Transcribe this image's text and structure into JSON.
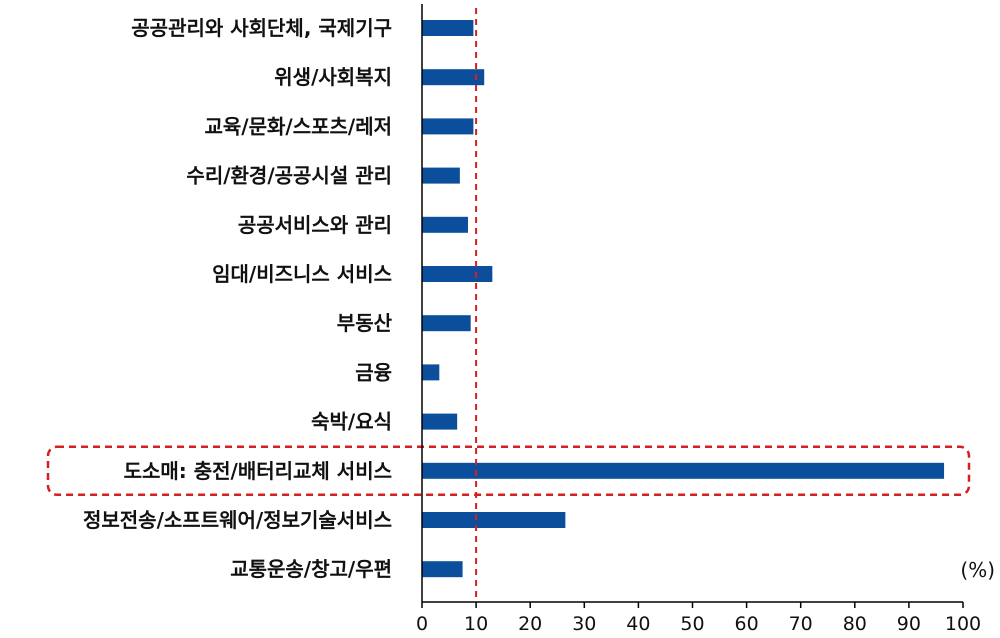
{
  "chart_data": {
    "type": "bar",
    "orientation": "horizontal",
    "categories": [
      "공공관리와 사회단체, 국제기구",
      "위생/사회복지",
      "교육/문화/스포츠/레저",
      "수리/환경/공공시설 관리",
      "공공서비스와 관리",
      "임대/비즈니스 서비스",
      "부동산",
      "금융",
      "숙박/요식",
      "도소매: 충전/배터리교체 서비스",
      "정보전송/소프트웨어/정보기술서비스",
      "교통운송/창고/우편"
    ],
    "values": [
      9.5,
      11.5,
      9.5,
      7,
      8.5,
      13,
      9,
      3.2,
      6.5,
      96.5,
      26.5,
      7.5
    ],
    "xlim": [
      0,
      100
    ],
    "xticks": [
      0,
      10,
      20,
      30,
      40,
      50,
      60,
      70,
      80,
      90,
      100
    ],
    "unit_label": "(%)",
    "reference_line": 10,
    "highlighted_category_index": 9,
    "bar_color": "#0b4f9c",
    "reference_line_color": "#d42020",
    "highlight_box_color": "#d42020",
    "grid": false,
    "legend": "none"
  }
}
